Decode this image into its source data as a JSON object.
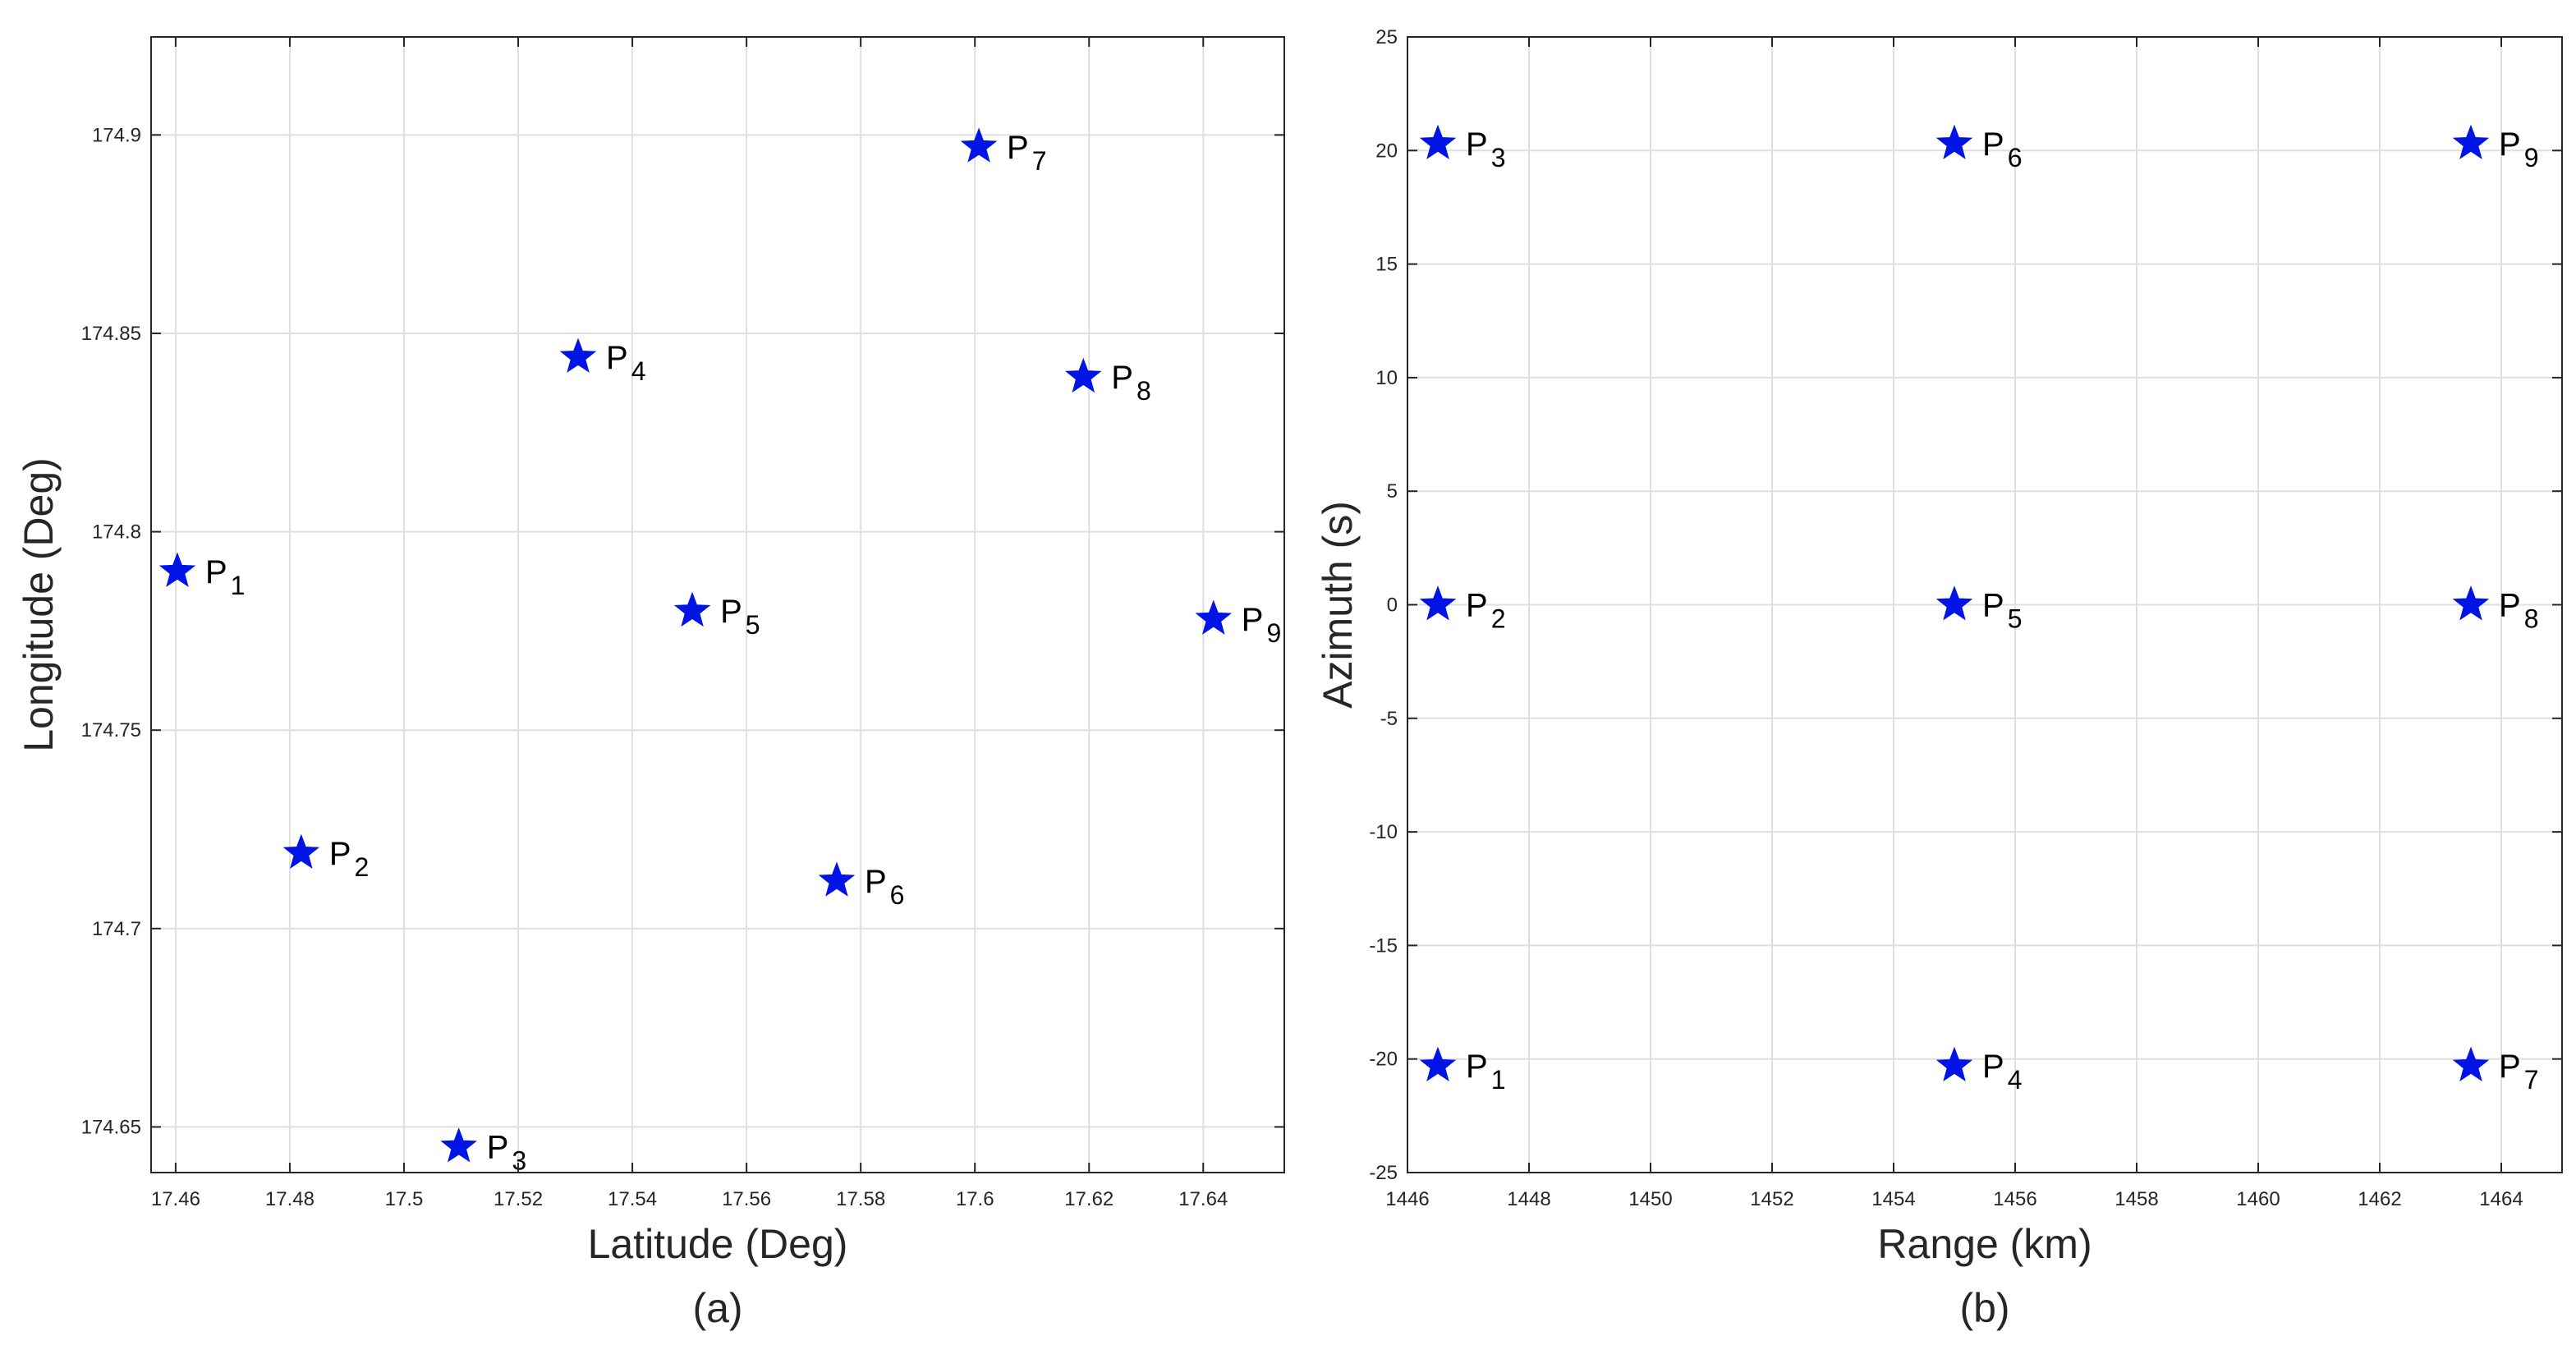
{
  "chart_data": [
    {
      "type": "scatter",
      "title": "",
      "caption": "(a)",
      "xlabel": "Latitude (Deg)",
      "ylabel": "Longitude (Deg)",
      "xlim": [
        17.4557,
        17.6542
      ],
      "ylim": [
        174.6385,
        174.9247
      ],
      "xticks": [
        17.46,
        17.48,
        17.5,
        17.52,
        17.54,
        17.56,
        17.58,
        17.6,
        17.62,
        17.64
      ],
      "xtick_labels": [
        "17.46",
        "17.48",
        "17.5",
        "17.52",
        "17.54",
        "17.56",
        "17.58",
        "17.6",
        "17.62",
        "17.64"
      ],
      "yticks": [
        174.65,
        174.7,
        174.75,
        174.8,
        174.85,
        174.9
      ],
      "ytick_labels": [
        "174.65",
        "174.7",
        "174.75",
        "174.8",
        "174.85",
        "174.9"
      ],
      "grid": true,
      "marker": "star",
      "marker_color": "#0014E6",
      "points": [
        {
          "label": "P",
          "sub": "1",
          "x": 17.4603,
          "y": 174.79
        },
        {
          "label": "P",
          "sub": "2",
          "x": 17.482,
          "y": 174.719
        },
        {
          "label": "P",
          "sub": "3",
          "x": 17.5096,
          "y": 174.645
        },
        {
          "label": "P",
          "sub": "4",
          "x": 17.5305,
          "y": 174.844
        },
        {
          "label": "P",
          "sub": "5",
          "x": 17.5505,
          "y": 174.78
        },
        {
          "label": "P",
          "sub": "6",
          "x": 17.5758,
          "y": 174.712
        },
        {
          "label": "P",
          "sub": "7",
          "x": 17.6007,
          "y": 174.897
        },
        {
          "label": "P",
          "sub": "8",
          "x": 17.619,
          "y": 174.839
        },
        {
          "label": "P",
          "sub": "9",
          "x": 17.6418,
          "y": 174.778
        }
      ]
    },
    {
      "type": "scatter",
      "title": "",
      "caption": "(b)",
      "xlabel": "Range (km)",
      "ylabel": "Azimuth (s)",
      "xlim": [
        1446,
        1465
      ],
      "ylim": [
        -25,
        25
      ],
      "xticks": [
        1446,
        1448,
        1450,
        1452,
        1454,
        1456,
        1458,
        1460,
        1462,
        1464
      ],
      "xtick_labels": [
        "1446",
        "1448",
        "1450",
        "1452",
        "1454",
        "1456",
        "1458",
        "1460",
        "1462",
        "1464"
      ],
      "yticks": [
        -25,
        -20,
        -15,
        -10,
        -5,
        0,
        5,
        10,
        15,
        20,
        25
      ],
      "ytick_labels": [
        "-25",
        "-20",
        "-15",
        "-10",
        "-5",
        "0",
        "5",
        "10",
        "15",
        "20",
        "25"
      ],
      "grid": true,
      "marker": "star",
      "marker_color": "#0014E6",
      "points": [
        {
          "label": "P",
          "sub": "1",
          "x": 1446.5,
          "y": -20.3
        },
        {
          "label": "P",
          "sub": "2",
          "x": 1446.5,
          "y": 0
        },
        {
          "label": "P",
          "sub": "3",
          "x": 1446.5,
          "y": 20.3
        },
        {
          "label": "P",
          "sub": "4",
          "x": 1455.0,
          "y": -20.3
        },
        {
          "label": "P",
          "sub": "5",
          "x": 1455.0,
          "y": 0
        },
        {
          "label": "P",
          "sub": "6",
          "x": 1455.0,
          "y": 20.3
        },
        {
          "label": "P",
          "sub": "7",
          "x": 1463.5,
          "y": -20.3
        },
        {
          "label": "P",
          "sub": "8",
          "x": 1463.5,
          "y": 0
        },
        {
          "label": "P",
          "sub": "9",
          "x": 1463.5,
          "y": 20.3
        }
      ]
    }
  ],
  "colors": {
    "grid": "#DFDFDF",
    "axis": "#262626",
    "marker": "#0014E6"
  }
}
